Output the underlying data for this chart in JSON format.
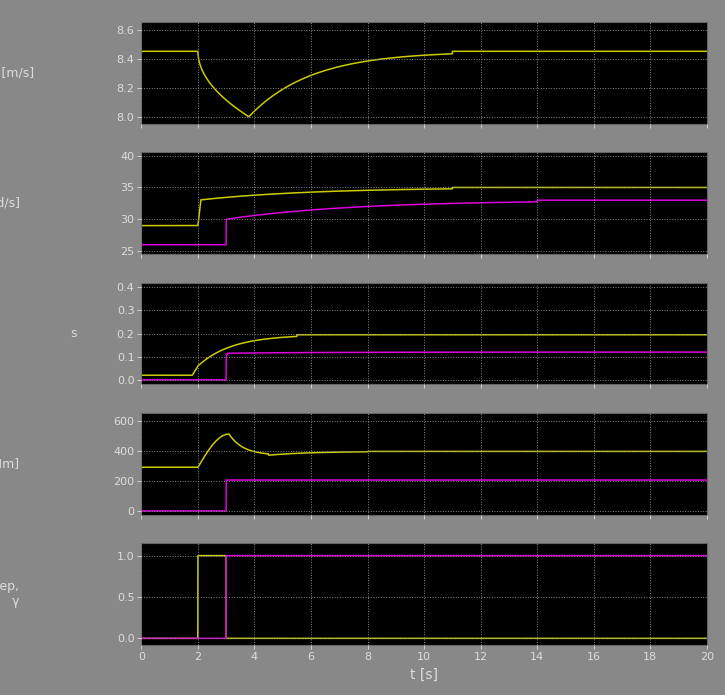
{
  "bg_color": "#888888",
  "plot_bg": "#000000",
  "yellow": "#cccc00",
  "magenta": "#dd00dd",
  "text_color": "#dddddd",
  "figsize": [
    7.25,
    6.95
  ],
  "dpi": 100,
  "t_end": 20,
  "subplot1": {
    "ylim": [
      7.95,
      8.65
    ],
    "yticks": [
      8.0,
      8.2,
      8.4,
      8.6
    ]
  },
  "subplot2": {
    "ylim": [
      24.5,
      40.5
    ],
    "yticks": [
      25,
      30,
      35,
      40
    ]
  },
  "subplot3": {
    "ylim": [
      -0.02,
      0.42
    ],
    "yticks": [
      0,
      0.1,
      0.2,
      0.3,
      0.4
    ]
  },
  "subplot4": {
    "ylim": [
      -25,
      650
    ],
    "yticks": [
      0,
      200,
      400,
      600
    ]
  },
  "subplot5": {
    "ylim": [
      -0.08,
      1.15
    ],
    "yticks": [
      0,
      0.5,
      1
    ]
  },
  "xticks": [
    0,
    2,
    4,
    6,
    8,
    10,
    12,
    14,
    16,
    18,
    20
  ],
  "xlabel": "t [s]"
}
